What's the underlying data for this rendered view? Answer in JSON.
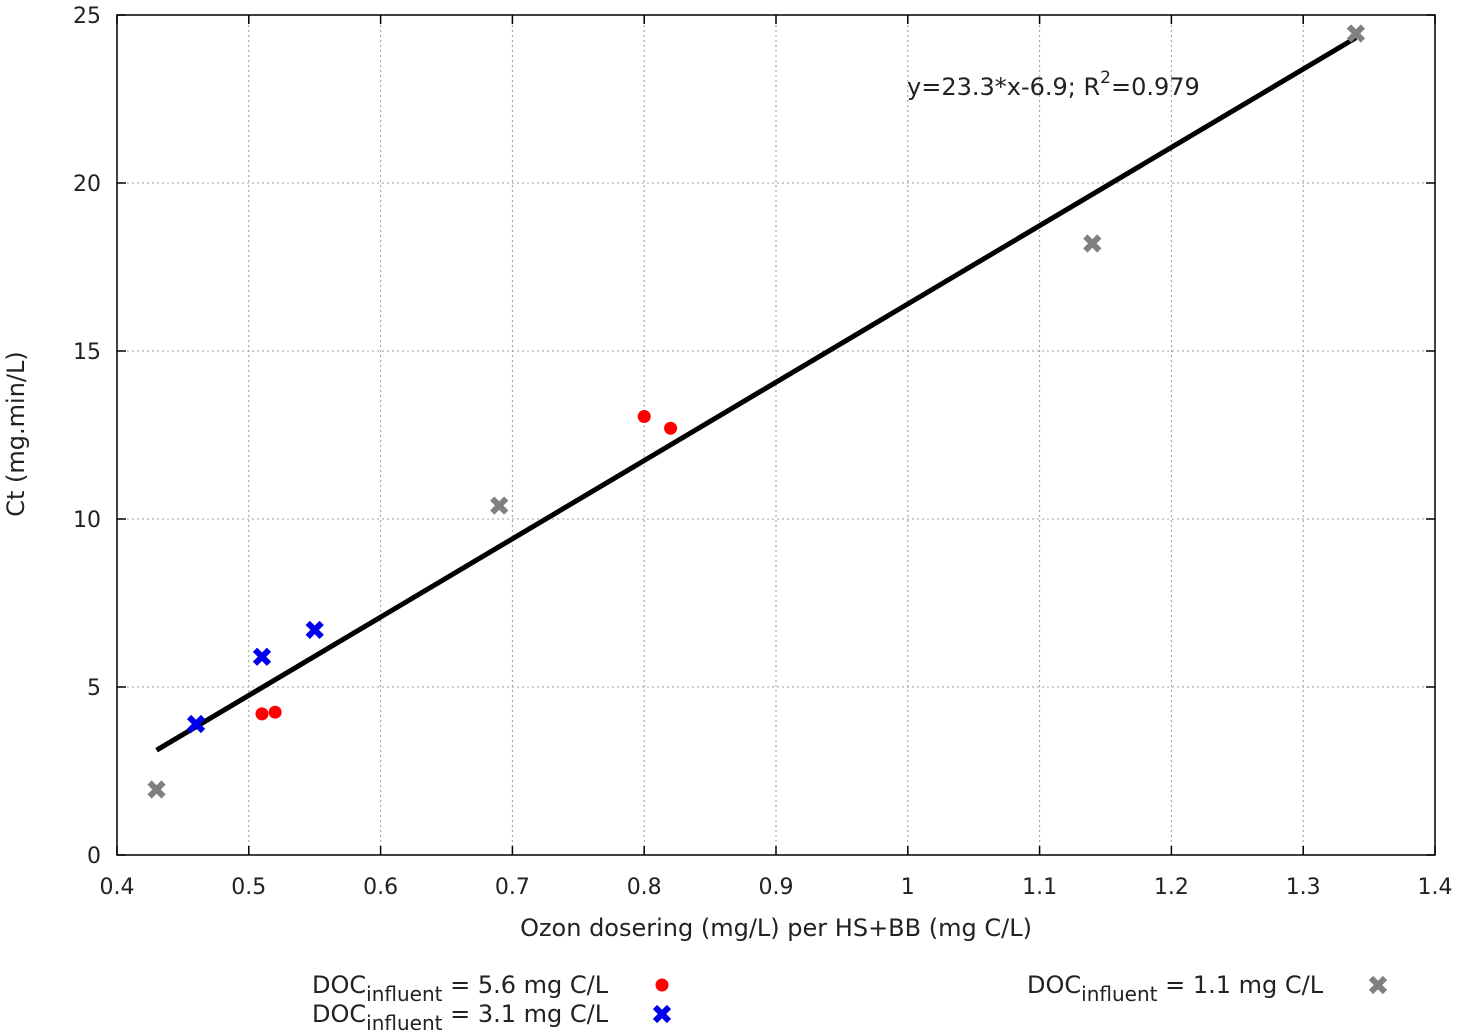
{
  "chart_data": {
    "type": "scatter",
    "xlabel": "Ozon dosering (mg/L) per HS+BB (mg C/L)",
    "ylabel": "Ct (mg.min/L)",
    "xlim": [
      0.4,
      1.4
    ],
    "ylim": [
      0,
      25
    ],
    "x_ticks": [
      "0.4",
      "0.5",
      "0.6",
      "0.7",
      "0.8",
      "0.9",
      "1",
      "1.1",
      "1.2",
      "1.3",
      "1.4"
    ],
    "y_ticks": [
      "0",
      "5",
      "10",
      "15",
      "20",
      "25"
    ],
    "grid": true,
    "series": [
      {
        "label_main": "DOC",
        "label_sub": "influent",
        "label_rest": " = 5.6 mg C/L",
        "marker": "circle",
        "color": "#ff0000",
        "points": [
          [
            0.51,
            4.2
          ],
          [
            0.52,
            4.25
          ],
          [
            0.8,
            13.05
          ],
          [
            0.82,
            12.7
          ]
        ]
      },
      {
        "label_main": "DOC",
        "label_sub": "influent",
        "label_rest": " = 3.1 mg C/L",
        "marker": "x",
        "color": "#0000ee",
        "points": [
          [
            0.46,
            3.9
          ],
          [
            0.51,
            5.9
          ],
          [
            0.55,
            6.7
          ]
        ]
      },
      {
        "label_main": "DOC",
        "label_sub": "influent",
        "label_rest": " = 1.1 mg C/L",
        "marker": "x",
        "color": "#808080",
        "points": [
          [
            0.43,
            1.95
          ],
          [
            0.69,
            10.4
          ],
          [
            1.14,
            18.2
          ],
          [
            1.34,
            24.45
          ]
        ]
      }
    ],
    "fit": {
      "slope": 23.3,
      "intercept": -6.9,
      "x_range": [
        0.43,
        1.34
      ],
      "color": "#000000",
      "annotation_main": "y=23.3*x-6.9; R",
      "annotation_sup": "2",
      "annotation_rest": "=0.979"
    },
    "legend_position": "bottom"
  }
}
